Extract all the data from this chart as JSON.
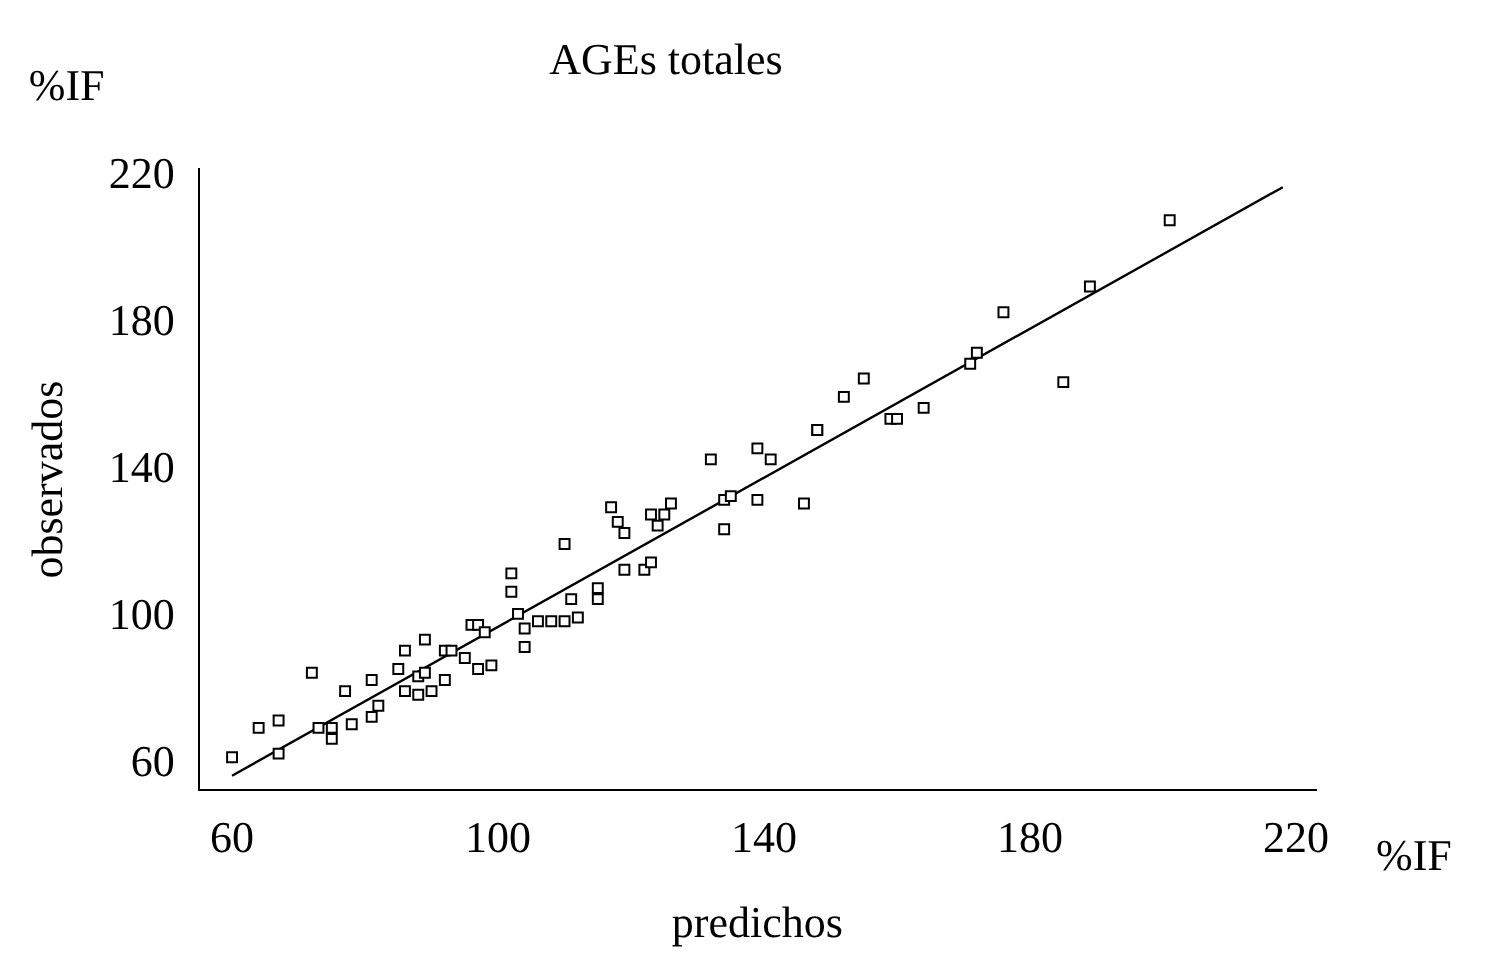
{
  "chart_data": {
    "type": "scatter",
    "title": "AGEs totales",
    "xlabel": "predichos",
    "ylabel": "observados",
    "annotations": [
      "%IF",
      "%IF"
    ],
    "xlim": [
      55,
      223
    ],
    "ylim": [
      53,
      222
    ],
    "xticks": [
      60,
      100,
      140,
      180,
      220
    ],
    "yticks": [
      60,
      100,
      140,
      180,
      220
    ],
    "grid": false,
    "legend": false,
    "series": [
      {
        "color": "#000000",
        "marker": "square",
        "x": [
          60,
          64,
          67,
          67,
          72,
          73,
          75,
          75,
          77,
          78,
          81,
          81,
          82,
          86,
          85,
          86,
          89,
          88,
          89,
          88,
          90,
          92,
          92,
          93,
          95,
          97,
          99,
          96,
          97,
          98,
          102,
          102,
          103,
          104,
          104,
          106,
          108,
          110,
          112,
          110,
          111,
          115,
          115,
          117,
          118,
          119,
          119,
          122,
          123,
          123,
          124,
          125,
          126,
          132,
          134,
          135,
          134,
          139,
          139,
          141,
          146,
          148,
          148,
          152,
          155,
          159,
          160,
          164,
          171,
          172,
          176,
          185,
          189,
          201
        ],
        "values": [
          62,
          70,
          72,
          63,
          85,
          70,
          70,
          67,
          80,
          71,
          83,
          73,
          76,
          91,
          86,
          80,
          94,
          84,
          85,
          79,
          80,
          83,
          91,
          91,
          89,
          86,
          87,
          98,
          98,
          96,
          112,
          107,
          101,
          97,
          92,
          99,
          99,
          99,
          100,
          120,
          105,
          105,
          108,
          130,
          126,
          123,
          113,
          113,
          115,
          128,
          125,
          128,
          131,
          143,
          132,
          133,
          124,
          132,
          146,
          143,
          131,
          151,
          151,
          160,
          165,
          154,
          154,
          157,
          169,
          172,
          183,
          164,
          190,
          208
        ]
      },
      {
        "type": "line",
        "marker": "none",
        "color": "#000000",
        "x": [
          60,
          218
        ],
        "values": [
          57,
          217
        ]
      }
    ]
  }
}
